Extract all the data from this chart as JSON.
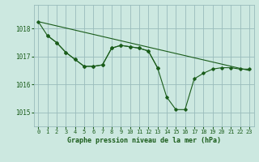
{
  "background_color": "#cce8e0",
  "grid_color": "#99bbbb",
  "line_color": "#1a5c1a",
  "marker_color": "#1a5c1a",
  "xlabel": "Graphe pression niveau de la mer (hPa)",
  "xlabel_color": "#1a5c1a",
  "tick_label_color": "#1a5c1a",
  "xlim": [
    -0.5,
    23.5
  ],
  "ylim": [
    1014.5,
    1018.85
  ],
  "yticks": [
    1015,
    1016,
    1017,
    1018
  ],
  "xticks": [
    0,
    1,
    2,
    3,
    4,
    5,
    6,
    7,
    8,
    9,
    10,
    11,
    12,
    13,
    14,
    15,
    16,
    17,
    18,
    19,
    20,
    21,
    22,
    23
  ],
  "series_diagonal": {
    "x": [
      0,
      23
    ],
    "y": [
      1018.25,
      1016.5
    ]
  },
  "series_wavy": {
    "x": [
      0,
      1,
      2,
      3,
      4,
      5,
      6,
      7,
      8,
      9,
      10,
      11,
      12,
      13,
      14,
      15,
      16,
      17,
      18,
      19,
      20,
      21,
      22,
      23
    ],
    "y": [
      1018.25,
      1017.75,
      1017.5,
      1017.15,
      1016.9,
      1016.65,
      1016.65,
      1016.7,
      1017.3,
      1017.4,
      1017.35,
      1017.3,
      1017.2,
      1016.6,
      1015.55,
      1015.1,
      1015.1,
      1016.2,
      1016.4,
      1016.55,
      1016.6,
      1016.6,
      1016.55,
      1016.55
    ]
  },
  "series_short": {
    "x": [
      1,
      2,
      3,
      4,
      5,
      6,
      7,
      8,
      9,
      10,
      11,
      12,
      13
    ],
    "y": [
      1017.75,
      1017.5,
      1017.15,
      1016.9,
      1016.65,
      1016.65,
      1016.7,
      1017.3,
      1017.4,
      1017.35,
      1017.3,
      1017.2,
      1016.6
    ]
  }
}
